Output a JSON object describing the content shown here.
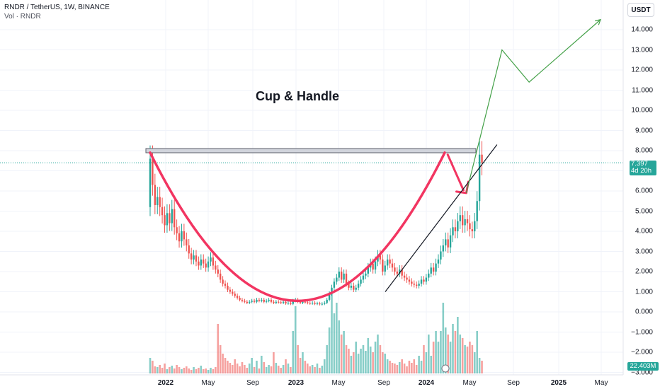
{
  "header": {
    "symbol_line": "RNDR / TetherUS, 1W, BINANCE",
    "volume_line": "Vol · RNDR",
    "currency_button": "USDT"
  },
  "annotation": {
    "title": "Cup & Handle"
  },
  "price_axis": {
    "labels": [
      "14.000",
      "13.000",
      "12.000",
      "11.000",
      "10.000",
      "9.000",
      "8.000",
      "7.000",
      "6.000",
      "5.000",
      "4.000",
      "3.000",
      "2.000",
      "1.000",
      "0.000",
      "−1.000",
      "−2.000",
      "−3.000"
    ]
  },
  "time_axis": {
    "labels": [
      {
        "text": "2022",
        "bold": true
      },
      {
        "text": "May",
        "bold": false
      },
      {
        "text": "Sep",
        "bold": false
      },
      {
        "text": "2023",
        "bold": true
      },
      {
        "text": "May",
        "bold": false
      },
      {
        "text": "Sep",
        "bold": false
      },
      {
        "text": "2024",
        "bold": true
      },
      {
        "text": "May",
        "bold": false
      },
      {
        "text": "Sep",
        "bold": false
      },
      {
        "text": "2025",
        "bold": true
      },
      {
        "text": "May",
        "bold": false
      }
    ]
  },
  "last_price": {
    "value": "7.397",
    "countdown": "4d 20h"
  },
  "volume_last": {
    "value": "22.403M"
  },
  "colors": {
    "up": "#26a69a",
    "down": "#ef5350",
    "cup": "#f23561",
    "projection": "#43a047",
    "trendline": "#ffffff",
    "resistance_fill": "#d1d4dc",
    "resistance_stroke": "#5d606b",
    "price_line": "#26a69a",
    "grid": "#f0f3fa"
  },
  "chart_data": {
    "type": "candlestick",
    "title": "RNDR / TetherUS, 1W, BINANCE",
    "ylim": [
      -3,
      14.5
    ],
    "xlim": [
      "2021-11-08",
      "2025-06-01"
    ],
    "last_price": 7.397,
    "resistance": 8.0,
    "closes": [
      7.6,
      6.3,
      5.3,
      5.7,
      5.2,
      4.8,
      4.3,
      4.9,
      4.4,
      5.1,
      4.2,
      3.9,
      3.5,
      4.0,
      3.6,
      3.3,
      2.9,
      2.6,
      2.8,
      2.5,
      2.3,
      2.6,
      2.4,
      2.2,
      2.5,
      2.7,
      2.3,
      2.1,
      1.9,
      1.6,
      1.4,
      1.3,
      1.1,
      1.0,
      0.9,
      0.8,
      0.7,
      0.6,
      0.55,
      0.5,
      0.45,
      0.5,
      0.55,
      0.5,
      0.6,
      0.55,
      0.6,
      0.5,
      0.55,
      0.6,
      0.5,
      0.45,
      0.5,
      0.48,
      0.45,
      0.5,
      0.42,
      0.45,
      0.4,
      0.55,
      0.6,
      0.5,
      0.45,
      0.5,
      0.48,
      0.44,
      0.42,
      0.45,
      0.4,
      0.42,
      0.38,
      0.4,
      0.45,
      0.6,
      0.9,
      1.2,
      1.5,
      1.7,
      2.0,
      1.6,
      1.9,
      1.4,
      1.2,
      1.3,
      1.1,
      1.2,
      1.4,
      1.6,
      1.8,
      1.9,
      2.2,
      2.4,
      2.1,
      2.5,
      2.8,
      2.6,
      2.0,
      2.3,
      2.6,
      2.4,
      2.2,
      2.0,
      1.9,
      2.1,
      1.8,
      1.7,
      1.6,
      1.5,
      1.4,
      1.35,
      1.3,
      1.4,
      1.6,
      1.5,
      1.7,
      1.9,
      2.2,
      2.0,
      2.4,
      2.6,
      3.0,
      3.3,
      3.6,
      3.2,
      3.8,
      4.2,
      4.0,
      4.5,
      4.8,
      4.3,
      4.6,
      4.4,
      4.1,
      4.0,
      4.5,
      5.5,
      7.8,
      7.4
    ],
    "projection_path": [
      {
        "x": "2024-03-01",
        "y": 7.8
      },
      {
        "x": "2024-04-22",
        "y": 5.9
      },
      {
        "x": "2024-07-31",
        "y": 13.0
      },
      {
        "x": "2024-10-15",
        "y": 11.4
      },
      {
        "x": "2025-05-03",
        "y": 14.5
      }
    ],
    "trendline": [
      {
        "x": "2023-09-08",
        "y": 1.0
      },
      {
        "x": "2024-07-17",
        "y": 8.3
      }
    ]
  }
}
